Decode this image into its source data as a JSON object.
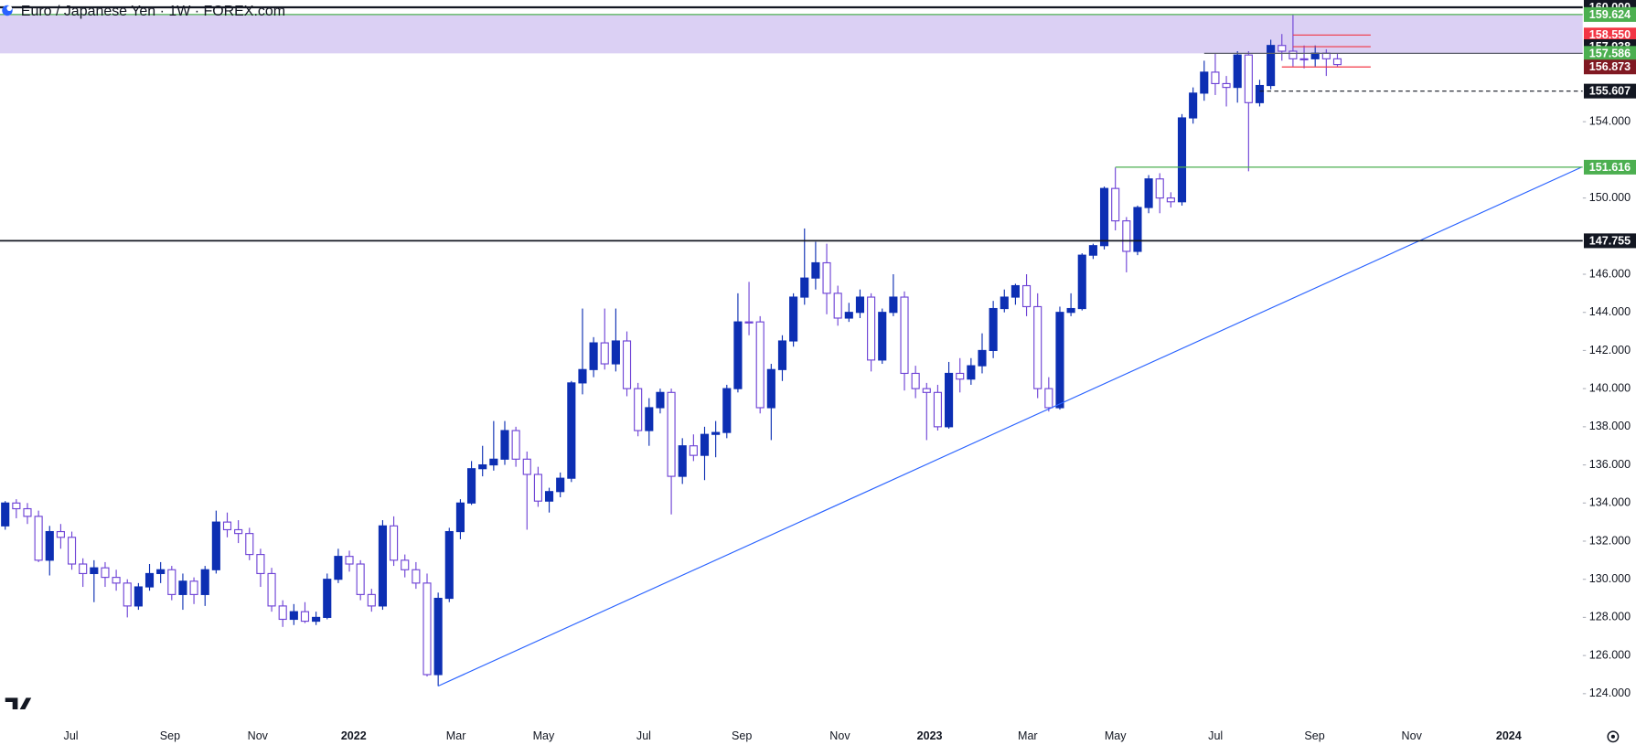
{
  "chart_data": {
    "type": "candlestick",
    "title": "Euro / Japanese Yen · 1W · FOREX.com",
    "ylim": [
      124,
      160
    ],
    "yticks": [
      {
        "value": 124,
        "label": "124.000"
      },
      {
        "value": 126,
        "label": "126.000"
      },
      {
        "value": 128,
        "label": "128.000"
      },
      {
        "value": 130,
        "label": "130.000"
      },
      {
        "value": 132,
        "label": "132.000"
      },
      {
        "value": 134,
        "label": "134.000"
      },
      {
        "value": 136,
        "label": "136.000"
      },
      {
        "value": 138,
        "label": "138.000"
      },
      {
        "value": 140,
        "label": "140.000"
      },
      {
        "value": 142,
        "label": "142.000"
      },
      {
        "value": 144,
        "label": "144.000"
      },
      {
        "value": 146,
        "label": "146.000"
      },
      {
        "value": 150,
        "label": "150.000"
      },
      {
        "value": 154,
        "label": "154.000"
      }
    ],
    "x_labels": [
      "Jul",
      "Sep",
      "Nov",
      "2022",
      "Mar",
      "May",
      "Jul",
      "Sep",
      "Nov",
      "2023",
      "Mar",
      "May",
      "Jul",
      "Sep",
      "Nov",
      "2024"
    ],
    "up_color": "#0d2fb3",
    "down_color": "#ffffff",
    "wick_color": "#6f44d6",
    "ohlc": [
      [
        132.8,
        134.1,
        132.6,
        134.0
      ],
      [
        134.0,
        134.2,
        133.2,
        133.7
      ],
      [
        133.7,
        134.0,
        132.9,
        133.3
      ],
      [
        133.3,
        133.6,
        130.9,
        131.0
      ],
      [
        131.0,
        132.8,
        130.2,
        132.5
      ],
      [
        132.5,
        132.9,
        131.6,
        132.2
      ],
      [
        132.2,
        132.5,
        130.5,
        130.8
      ],
      [
        130.8,
        131.1,
        129.6,
        130.3
      ],
      [
        130.3,
        131.0,
        128.8,
        130.6
      ],
      [
        130.6,
        130.9,
        129.6,
        130.1
      ],
      [
        130.1,
        130.5,
        129.4,
        129.8
      ],
      [
        129.8,
        130.0,
        128.0,
        128.6
      ],
      [
        128.6,
        129.8,
        128.4,
        129.6
      ],
      [
        129.6,
        130.8,
        129.4,
        130.3
      ],
      [
        130.3,
        130.9,
        129.8,
        130.5
      ],
      [
        130.5,
        130.7,
        128.9,
        129.2
      ],
      [
        129.2,
        130.3,
        128.4,
        129.9
      ],
      [
        129.9,
        130.1,
        128.7,
        129.2
      ],
      [
        129.2,
        130.7,
        128.6,
        130.5
      ],
      [
        130.5,
        133.6,
        130.3,
        133.0
      ],
      [
        133.0,
        133.5,
        132.2,
        132.6
      ],
      [
        132.6,
        133.1,
        131.9,
        132.4
      ],
      [
        132.4,
        132.7,
        131.0,
        131.3
      ],
      [
        131.3,
        131.6,
        129.6,
        130.3
      ],
      [
        130.3,
        130.6,
        128.3,
        128.6
      ],
      [
        128.6,
        128.9,
        127.5,
        127.9
      ],
      [
        127.9,
        128.7,
        127.6,
        128.3
      ],
      [
        128.3,
        128.8,
        127.7,
        127.8
      ],
      [
        127.8,
        128.3,
        127.6,
        128.0
      ],
      [
        128.0,
        130.3,
        127.9,
        130.0
      ],
      [
        130.0,
        131.6,
        129.8,
        131.2
      ],
      [
        131.2,
        131.5,
        130.4,
        130.8
      ],
      [
        130.8,
        131.0,
        128.9,
        129.2
      ],
      [
        129.2,
        129.5,
        128.3,
        128.6
      ],
      [
        128.6,
        133.1,
        128.4,
        132.8
      ],
      [
        132.8,
        133.3,
        130.7,
        131.0
      ],
      [
        131.0,
        131.3,
        130.1,
        130.5
      ],
      [
        130.5,
        130.9,
        129.5,
        129.8
      ],
      [
        129.8,
        130.3,
        124.9,
        125.0
      ],
      [
        125.0,
        129.3,
        124.4,
        129.0
      ],
      [
        129.0,
        132.7,
        128.8,
        132.5
      ],
      [
        132.5,
        134.2,
        132.1,
        134.0
      ],
      [
        134.0,
        136.2,
        133.9,
        135.8
      ],
      [
        135.8,
        137.0,
        135.4,
        136.0
      ],
      [
        136.0,
        138.3,
        135.7,
        136.3
      ],
      [
        136.3,
        138.3,
        136.0,
        137.8
      ],
      [
        137.8,
        138.0,
        135.9,
        136.3
      ],
      [
        136.3,
        136.7,
        132.6,
        135.5
      ],
      [
        135.5,
        135.9,
        133.8,
        134.1
      ],
      [
        134.1,
        134.8,
        133.5,
        134.6
      ],
      [
        134.6,
        135.6,
        134.3,
        135.3
      ],
      [
        135.3,
        140.4,
        135.1,
        140.3
      ],
      [
        140.3,
        144.2,
        139.7,
        141.0
      ],
      [
        141.0,
        142.7,
        140.6,
        142.4
      ],
      [
        142.4,
        144.2,
        141.0,
        141.3
      ],
      [
        141.3,
        144.2,
        140.9,
        142.5
      ],
      [
        142.5,
        143.0,
        139.6,
        140.0
      ],
      [
        140.0,
        140.3,
        137.5,
        137.8
      ],
      [
        137.8,
        139.5,
        137.0,
        139.0
      ],
      [
        139.0,
        140.0,
        138.7,
        139.8
      ],
      [
        139.8,
        140.0,
        133.4,
        135.4
      ],
      [
        135.4,
        137.4,
        135.0,
        137.0
      ],
      [
        137.0,
        137.6,
        136.2,
        136.5
      ],
      [
        136.5,
        138.0,
        135.2,
        137.6
      ],
      [
        137.6,
        138.3,
        136.4,
        137.7
      ],
      [
        137.7,
        140.2,
        137.4,
        140.0
      ],
      [
        140.0,
        145.0,
        139.8,
        143.5
      ],
      [
        143.5,
        145.6,
        142.8,
        143.5
      ],
      [
        143.5,
        143.8,
        138.7,
        139.0
      ],
      [
        139.0,
        141.3,
        137.3,
        141.0
      ],
      [
        141.0,
        142.8,
        140.4,
        142.5
      ],
      [
        142.5,
        145.0,
        142.2,
        144.8
      ],
      [
        144.8,
        148.4,
        144.4,
        145.8
      ],
      [
        145.8,
        147.7,
        145.2,
        146.6
      ],
      [
        146.6,
        147.6,
        143.9,
        145.0
      ],
      [
        145.0,
        145.4,
        143.3,
        143.7
      ],
      [
        143.7,
        144.5,
        143.5,
        144.0
      ],
      [
        144.0,
        145.2,
        143.7,
        144.8
      ],
      [
        144.8,
        145.0,
        140.9,
        141.5
      ],
      [
        141.5,
        144.2,
        141.3,
        144.0
      ],
      [
        144.0,
        146.0,
        143.8,
        144.8
      ],
      [
        144.8,
        145.1,
        139.9,
        140.8
      ],
      [
        140.8,
        141.2,
        139.5,
        140.0
      ],
      [
        140.0,
        140.3,
        137.3,
        139.8
      ],
      [
        139.8,
        140.2,
        137.8,
        138.0
      ],
      [
        138.0,
        141.4,
        137.9,
        140.8
      ],
      [
        140.8,
        141.6,
        139.8,
        140.5
      ],
      [
        140.5,
        141.6,
        140.2,
        141.2
      ],
      [
        141.2,
        142.9,
        140.8,
        142.0
      ],
      [
        142.0,
        144.6,
        141.6,
        144.2
      ],
      [
        144.2,
        145.2,
        144.0,
        144.8
      ],
      [
        144.8,
        145.5,
        144.4,
        145.4
      ],
      [
        145.4,
        146.0,
        143.8,
        144.3
      ],
      [
        144.3,
        145.0,
        139.5,
        140.0
      ],
      [
        140.0,
        140.6,
        138.8,
        139.0
      ],
      [
        139.0,
        144.3,
        138.9,
        144.0
      ],
      [
        144.0,
        145.0,
        143.8,
        144.2
      ],
      [
        144.2,
        147.1,
        144.1,
        147.0
      ],
      [
        147.0,
        147.6,
        146.8,
        147.5
      ],
      [
        147.5,
        150.6,
        147.3,
        150.5
      ],
      [
        150.5,
        151.6,
        148.3,
        148.8
      ],
      [
        148.8,
        149.0,
        146.1,
        147.2
      ],
      [
        147.2,
        149.6,
        147.0,
        149.5
      ],
      [
        149.5,
        151.2,
        149.2,
        151.0
      ],
      [
        151.0,
        151.3,
        149.2,
        150.0
      ],
      [
        150.0,
        150.3,
        149.5,
        149.8
      ],
      [
        149.8,
        154.4,
        149.6,
        154.2
      ],
      [
        154.2,
        155.8,
        153.9,
        155.5
      ],
      [
        155.5,
        157.2,
        155.1,
        156.6
      ],
      [
        156.6,
        157.6,
        155.4,
        156.0
      ],
      [
        156.0,
        156.4,
        154.8,
        155.8
      ],
      [
        155.8,
        157.7,
        155.0,
        157.5
      ],
      [
        157.5,
        157.7,
        151.4,
        155.0
      ],
      [
        155.0,
        156.2,
        154.8,
        155.9
      ],
      [
        155.9,
        158.3,
        155.7,
        158.0
      ],
      [
        158.0,
        158.6,
        157.2,
        157.7
      ],
      [
        157.7,
        159.6,
        156.9,
        157.3
      ],
      [
        157.3,
        158.0,
        156.8,
        157.3
      ],
      [
        157.3,
        158.0,
        156.9,
        157.6
      ],
      [
        157.6,
        157.8,
        156.4,
        157.3
      ],
      [
        157.3,
        157.6,
        156.9,
        157.0
      ]
    ],
    "levels": [
      {
        "value": 160,
        "label": "160.000",
        "color": "#131722"
      },
      {
        "value": 159.624,
        "color": "#4caf50"
      },
      {
        "value": 158.55,
        "label": "158.550",
        "color": "#f23645",
        "from": 116,
        "to": 123
      },
      {
        "value": 157.938,
        "color": "#131722",
        "line_color": "#f23645",
        "from": 116,
        "to": 123
      },
      {
        "value": 157.586,
        "color": "#4caf50",
        "line_color": "#5d606b",
        "from": 108
      },
      {
        "value": 156.873,
        "color": "#801922",
        "line_color": "#f23645",
        "from": 115,
        "to": 123
      },
      {
        "value": 155.607,
        "color": "#131722",
        "dashed": true,
        "from": 113
      },
      {
        "value": 151.616,
        "color": "#4caf50",
        "from": 100
      },
      {
        "value": 147.755,
        "color": "#131722"
      }
    ],
    "trendline": {
      "color": "#2962ff",
      "from": {
        "index": 39,
        "price": 124.4
      },
      "to": {
        "index": 142,
        "price": 151.616
      }
    }
  }
}
